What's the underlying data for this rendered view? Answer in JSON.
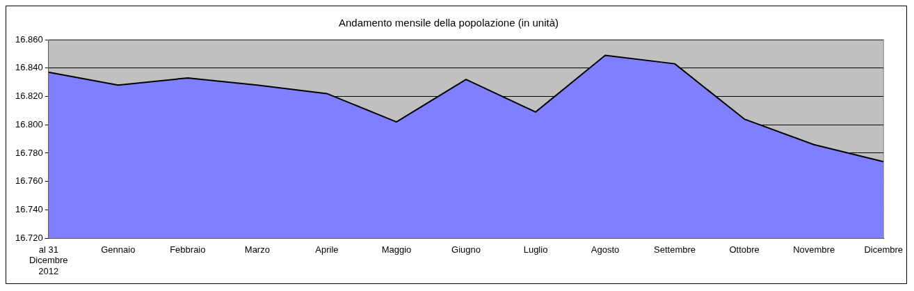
{
  "chart_data": {
    "type": "area",
    "title": "Andamento mensile della popolazione (in unità)",
    "categories": [
      "al 31 Dicembre 2012",
      "Gennaio",
      "Febbraio",
      "Marzo",
      "Aprile",
      "Maggio",
      "Giugno",
      "Luglio",
      "Agosto",
      "Settembre",
      "Ottobre",
      "Novembre",
      "Dicembre"
    ],
    "series": [
      {
        "color": "#8080ff",
        "values": [
          16837,
          16828,
          16833,
          16828,
          16822,
          16802,
          16832,
          16809,
          16849,
          16843,
          16804,
          16786,
          16774
        ]
      }
    ],
    "ylim": [
      16720,
      16860
    ],
    "yticks": [
      {
        "value": 16720,
        "label": "16.720"
      },
      {
        "value": 16740,
        "label": "16.740"
      },
      {
        "value": 16760,
        "label": "16.760"
      },
      {
        "value": 16780,
        "label": "16.780"
      },
      {
        "value": 16800,
        "label": "16.800"
      },
      {
        "value": 16820,
        "label": "16.820"
      },
      {
        "value": 16840,
        "label": "16.840"
      },
      {
        "value": 16860,
        "label": "16.860"
      }
    ],
    "grid": "y",
    "legend": false
  }
}
